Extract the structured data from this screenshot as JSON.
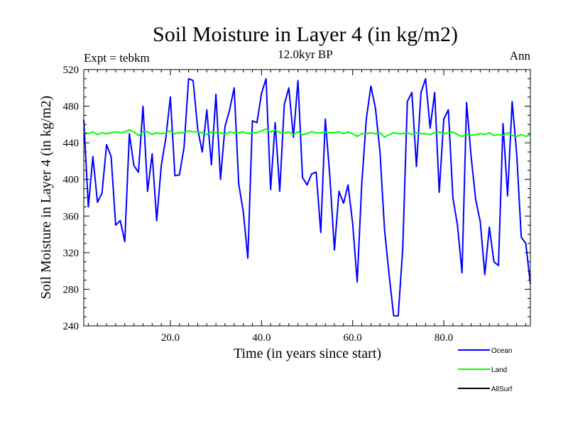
{
  "chart_data": {
    "type": "line",
    "title": "Soil Moisture in Layer 4 (in kg/m2)",
    "left_subtitle": "Expt = tebkm",
    "center_subtitle": "12.0kyr BP",
    "right_subtitle": "Ann",
    "xlabel": "Time (in years since start)",
    "ylabel": "Soil Moisture in Layer 4 (in kg/m2)",
    "xlim": [
      1,
      99
    ],
    "ylim": [
      240,
      520
    ],
    "xticks": [
      20,
      40,
      60,
      80
    ],
    "xtick_labels": [
      "20.0",
      "40.0",
      "60.0",
      "80.0"
    ],
    "yticks": [
      240,
      280,
      320,
      360,
      400,
      440,
      480,
      520
    ],
    "ytick_labels": [
      "240",
      "280",
      "320",
      "360",
      "400",
      "440",
      "480",
      "520"
    ],
    "x_minor_step": 2,
    "y_minor_step": 10,
    "legend_placement": "bottom-right",
    "series": [
      {
        "name": "Ocean",
        "color": "#0000ff",
        "x": [
          1,
          2,
          3,
          4,
          5,
          6,
          7,
          8,
          9,
          10,
          11,
          12,
          13,
          14,
          15,
          16,
          17,
          18,
          19,
          20,
          21,
          22,
          23,
          24,
          25,
          26,
          27,
          28,
          29,
          30,
          31,
          32,
          33,
          34,
          35,
          36,
          37,
          38,
          39,
          40,
          41,
          42,
          43,
          44,
          45,
          46,
          47,
          48,
          49,
          50,
          51,
          52,
          53,
          54,
          55,
          56,
          57,
          58,
          59,
          60,
          61,
          62,
          63,
          64,
          65,
          66,
          67,
          68,
          69,
          70,
          71,
          72,
          73,
          74,
          75,
          76,
          77,
          78,
          79,
          80,
          81,
          82,
          83,
          84,
          85,
          86,
          87,
          88,
          89,
          90,
          91,
          92,
          93,
          94,
          95,
          96,
          97,
          98,
          99
        ],
        "values": [
          465,
          370,
          425,
          375,
          385,
          438,
          425,
          350,
          355,
          332,
          450,
          415,
          408,
          480,
          387,
          428,
          355,
          415,
          445,
          490,
          404,
          405,
          435,
          510,
          508,
          455,
          430,
          476,
          416,
          493,
          400,
          458,
          476,
          500,
          395,
          365,
          314,
          464,
          462,
          494,
          510,
          389,
          462,
          387,
          482,
          500,
          446,
          508,
          402,
          394,
          406,
          408,
          342,
          466,
          403,
          323,
          387,
          374,
          394,
          352,
          288,
          395,
          466,
          502,
          478,
          430,
          345,
          296,
          251,
          251,
          325,
          485,
          495,
          414,
          495,
          510,
          456,
          495,
          386,
          466,
          476,
          380,
          350,
          298,
          484,
          425,
          378,
          354,
          296,
          348,
          310,
          306,
          461,
          382,
          485,
          428,
          337,
          330,
          286
        ]
      },
      {
        "name": "Land",
        "color": "#00ff00",
        "x": [
          1,
          2,
          3,
          4,
          5,
          6,
          7,
          8,
          9,
          10,
          11,
          12,
          13,
          14,
          15,
          16,
          17,
          18,
          19,
          20,
          21,
          22,
          23,
          24,
          25,
          26,
          27,
          28,
          29,
          30,
          31,
          32,
          33,
          34,
          35,
          36,
          37,
          38,
          39,
          40,
          41,
          42,
          43,
          44,
          45,
          46,
          47,
          48,
          49,
          50,
          51,
          52,
          53,
          54,
          55,
          56,
          57,
          58,
          59,
          60,
          61,
          62,
          63,
          64,
          65,
          66,
          67,
          68,
          69,
          70,
          71,
          72,
          73,
          74,
          75,
          76,
          77,
          78,
          79,
          80,
          81,
          82,
          83,
          84,
          85,
          86,
          87,
          88,
          89,
          90,
          91,
          92,
          93,
          94,
          95,
          96,
          97,
          98,
          99
        ],
        "values": [
          452,
          450,
          452,
          449,
          451,
          450,
          451,
          452,
          451,
          452,
          454,
          452,
          448,
          452,
          452,
          449,
          451,
          450,
          451,
          453,
          450,
          451,
          451,
          453,
          452,
          452,
          451,
          449,
          452,
          451,
          451,
          449,
          452,
          451,
          451,
          452,
          450,
          451,
          451,
          453,
          455,
          452,
          454,
          451,
          451,
          452,
          449,
          452,
          449,
          450,
          452,
          451,
          451,
          452,
          451,
          451,
          452,
          450,
          452,
          450,
          447,
          450,
          450,
          451,
          450,
          451,
          446,
          449,
          451,
          450,
          450,
          451,
          449,
          451,
          450,
          450,
          449,
          451,
          452,
          450,
          451,
          452,
          449,
          447,
          449,
          448,
          449,
          450,
          449,
          451,
          448,
          449,
          448,
          451,
          448,
          447,
          449,
          447,
          449
        ]
      },
      {
        "name": "AllSurf",
        "color": "#000000",
        "x": [],
        "values": []
      }
    ]
  }
}
